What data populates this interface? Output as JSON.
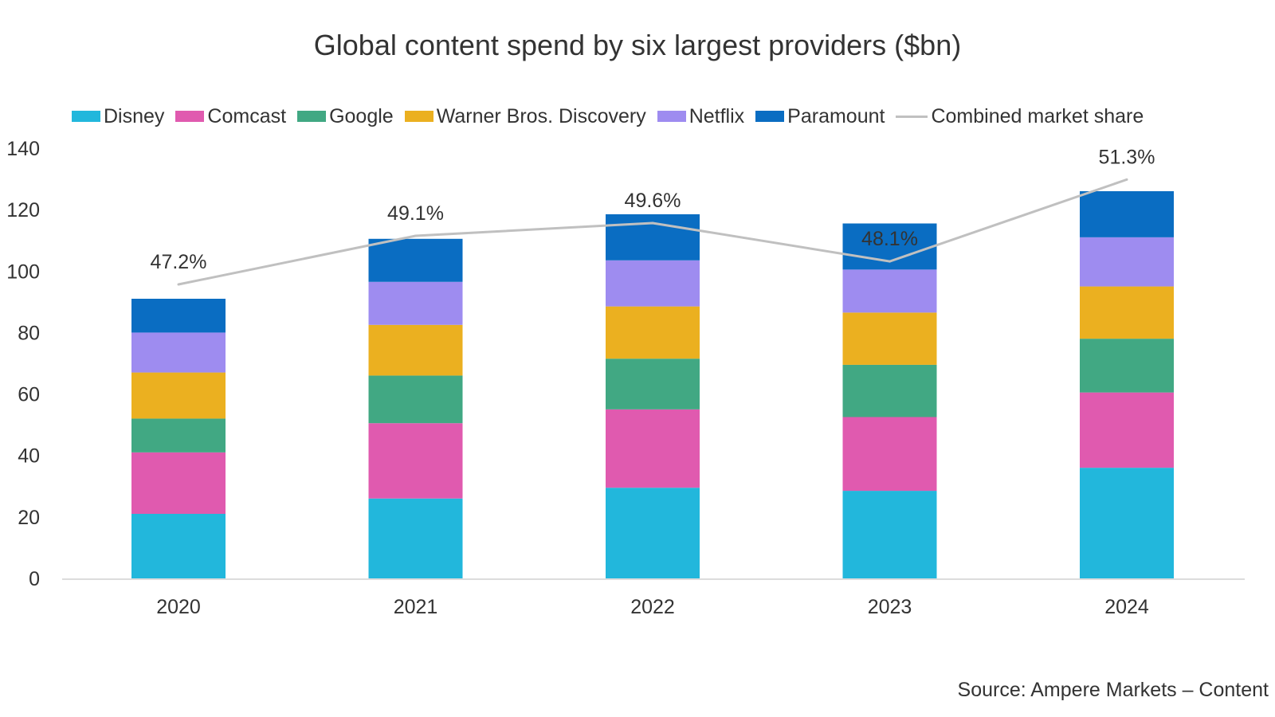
{
  "chart_data": {
    "type": "bar",
    "stacked": true,
    "title": "Global content spend by six largest providers ($bn)",
    "categories": [
      "2020",
      "2021",
      "2022",
      "2023",
      "2024"
    ],
    "ylim": [
      0,
      140
    ],
    "yticks": [
      0,
      20,
      40,
      60,
      80,
      100,
      120,
      140
    ],
    "grid": false,
    "legend_position": "top",
    "series": [
      {
        "name": "Disney",
        "color": "#22b7dc",
        "values": [
          21,
          26,
          29.5,
          28.5,
          36
        ]
      },
      {
        "name": "Comcast",
        "color": "#e05aaf",
        "values": [
          20,
          24.5,
          25.5,
          24,
          24.5
        ]
      },
      {
        "name": "Google",
        "color": "#41a883",
        "values": [
          11,
          15.5,
          16.5,
          17,
          17.5
        ]
      },
      {
        "name": "Warner Bros. Discovery",
        "color": "#ebb020",
        "values": [
          15,
          16.5,
          17,
          17,
          17
        ]
      },
      {
        "name": "Netflix",
        "color": "#9e8cf0",
        "values": [
          13,
          14,
          15,
          14,
          16
        ]
      },
      {
        "name": "Paramount",
        "color": "#0a6dc2",
        "values": [
          11,
          14,
          15,
          15,
          15
        ]
      }
    ],
    "line_series": {
      "name": "Combined market share",
      "color": "#c0c0c0",
      "values": [
        47.2,
        49.1,
        49.6,
        48.1,
        51.3
      ],
      "labels": [
        "47.2%",
        "49.1%",
        "49.6%",
        "48.1%",
        "51.3%"
      ]
    }
  },
  "source": "Source: Ampere Markets – Content"
}
